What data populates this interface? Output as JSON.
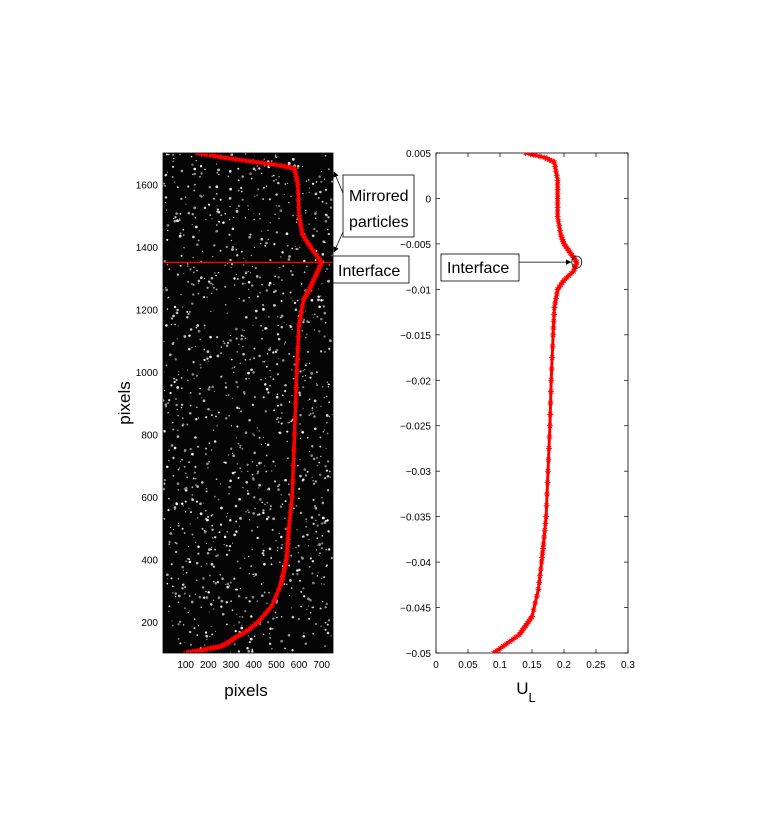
{
  "chart_data": [
    {
      "type": "line",
      "background": "particle-image",
      "xlabel": "pixels",
      "ylabel": "pixels",
      "xlim": [
        0,
        750
      ],
      "ylim": [
        100,
        1700
      ],
      "xticks": [
        100,
        200,
        300,
        400,
        500,
        600,
        700
      ],
      "yticks": [
        200,
        400,
        600,
        800,
        1000,
        1200,
        1400,
        1600
      ],
      "series": [
        {
          "color": "#ff0000",
          "x": [
            150,
            230,
            320,
            420,
            520,
            580,
            595,
            600,
            615,
            650,
            700,
            675,
            650,
            620,
            600,
            590,
            580,
            570,
            555,
            550,
            545,
            530,
            520,
            480,
            420,
            370,
            320,
            280,
            250,
            210,
            180,
            140,
            100
          ],
          "y": [
            1700,
            1690,
            1680,
            1670,
            1660,
            1650,
            1600,
            1500,
            1440,
            1400,
            1350,
            1310,
            1270,
            1230,
            1150,
            1000,
            800,
            600,
            500,
            450,
            400,
            350,
            320,
            250,
            200,
            170,
            150,
            130,
            120,
            115,
            110,
            105,
            100
          ]
        }
      ],
      "hline": {
        "y": 1350,
        "color": "#ff0000"
      },
      "annotations": [
        {
          "text_lines": [
            "Mirrored",
            "particles"
          ]
        },
        {
          "text": "Interface"
        }
      ]
    },
    {
      "type": "line",
      "xlabel_main": "U",
      "xlabel_sub": "L",
      "xlim": [
        0,
        0.3
      ],
      "ylim": [
        -0.05,
        0.005
      ],
      "xticks": [
        "0",
        "0.05",
        "0.1",
        "0.15",
        "0.2",
        "0.25",
        "0.3"
      ],
      "yticks": [
        "0.005",
        "0",
        "-0.005",
        "-0.01",
        "-0.015",
        "-0.02",
        "-0.025",
        "-0.03",
        "-0.035",
        "-0.04",
        "-0.045",
        "-0.05"
      ],
      "series": [
        {
          "color": "#ff0000",
          "x": [
            0.14,
            0.17,
            0.185,
            0.19,
            0.19,
            0.19,
            0.195,
            0.2,
            0.21,
            0.22,
            0.215,
            0.2,
            0.19,
            0.185,
            0.183,
            0.18,
            0.178,
            0.175,
            0.172,
            0.168,
            0.165,
            0.16,
            0.15,
            0.14,
            0.13,
            0.11,
            0.09
          ],
          "y": [
            0.005,
            0.0045,
            0.004,
            0.002,
            0.0,
            -0.002,
            -0.004,
            -0.005,
            -0.006,
            -0.007,
            -0.008,
            -0.009,
            -0.01,
            -0.012,
            -0.015,
            -0.02,
            -0.025,
            -0.03,
            -0.035,
            -0.038,
            -0.04,
            -0.043,
            -0.046,
            -0.047,
            -0.048,
            -0.049,
            -0.05
          ]
        }
      ],
      "annotations": [
        {
          "text": "Interface",
          "target": [
            0.22,
            -0.007
          ]
        }
      ]
    }
  ]
}
